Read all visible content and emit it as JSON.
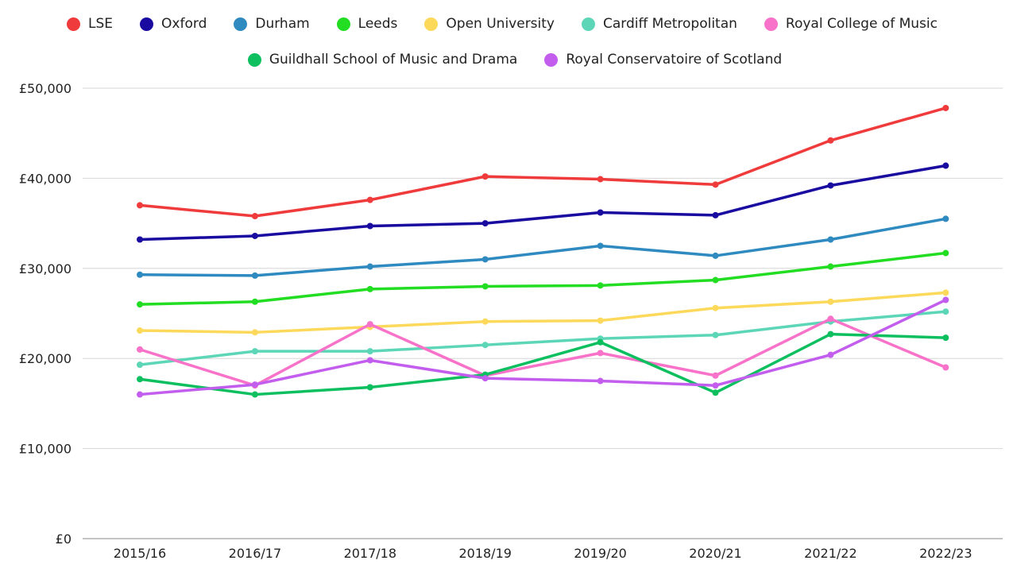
{
  "chart_data": {
    "type": "line",
    "title": "",
    "xlabel": "",
    "ylabel": "",
    "ylim": [
      0,
      50000
    ],
    "yticks": [
      "£0",
      "£10,000",
      "£20,000",
      "£30,000",
      "£40,000",
      "£50,000"
    ],
    "ytick_values": [
      0,
      10000,
      20000,
      30000,
      40000,
      50000
    ],
    "grid": true,
    "legend_placement": "top",
    "categories": [
      "2015/16",
      "2016/17",
      "2017/18",
      "2018/19",
      "2019/20",
      "2020/21",
      "2021/22",
      "2022/23"
    ],
    "series": [
      {
        "name": "LSE",
        "color": "#ef3b3b",
        "values": [
          37000,
          35800,
          37600,
          40200,
          39900,
          39300,
          44200,
          47800
        ]
      },
      {
        "name": "Oxford",
        "color": "#1a0ba0",
        "values": [
          33200,
          33600,
          34700,
          35000,
          36200,
          35900,
          39200,
          41400
        ]
      },
      {
        "name": "Durham",
        "color": "#2f8ac0",
        "values": [
          29300,
          29200,
          30200,
          31000,
          32500,
          31400,
          33200,
          35500
        ]
      },
      {
        "name": "Leeds",
        "color": "#22dd22",
        "values": [
          26000,
          26300,
          27700,
          28000,
          28100,
          28700,
          30200,
          31700
        ]
      },
      {
        "name": "Open University",
        "color": "#fcd95a",
        "values": [
          23100,
          22900,
          23500,
          24100,
          24200,
          25600,
          26300,
          27300
        ]
      },
      {
        "name": "Cardiff Metropolitan",
        "color": "#5dd6b8",
        "values": [
          19300,
          20800,
          20800,
          21500,
          22200,
          22600,
          24100,
          25200
        ]
      },
      {
        "name": "Royal College of Music",
        "color": "#f772c8",
        "values": [
          21000,
          17000,
          23800,
          18100,
          20600,
          18100,
          24400,
          19000
        ]
      },
      {
        "name": "Guildhall School of Music and Drama",
        "color": "#0dbf5f",
        "values": [
          17700,
          16000,
          16800,
          18200,
          21800,
          16200,
          22700,
          22300
        ]
      },
      {
        "name": "Royal Conservatoire of Scotland",
        "color": "#c25ded",
        "values": [
          16000,
          17100,
          19800,
          17800,
          17500,
          17000,
          20400,
          26500
        ]
      }
    ]
  }
}
